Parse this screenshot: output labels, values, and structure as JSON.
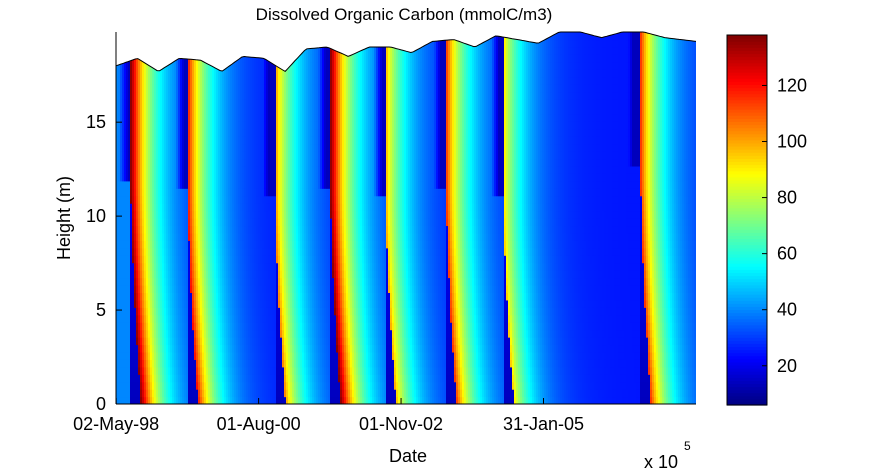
{
  "chart_data": {
    "type": "heatmap",
    "title": "Dissolved Organic Carbon (mmolC/m3)",
    "xlabel": "Date",
    "ylabel": "Height (m)",
    "x_axis": {
      "ticks": [
        {
          "date": "1998-05-02",
          "label": "02-May-98"
        },
        {
          "date": "2000-08-01",
          "label": "01-Aug-00"
        },
        {
          "date": "2002-11-01",
          "label": "01-Nov-02"
        },
        {
          "date": "2005-01-31",
          "label": "31-Jan-05"
        }
      ],
      "xlim": [
        "1998-05-01",
        "2007-06-30"
      ],
      "exponent_label": "x 10",
      "exponent_power": "5"
    },
    "y_axis": {
      "ticks": [
        0,
        5,
        10,
        15
      ],
      "ylim": [
        0,
        19.8
      ]
    },
    "colorbar": {
      "colormap": "jet",
      "range": [
        6,
        138
      ],
      "ticks": [
        20,
        40,
        60,
        80,
        100,
        120
      ]
    },
    "surface_height_m": [
      {
        "date": "1998-05-01",
        "height": 18.0
      },
      {
        "date": "1998-09-01",
        "height": 18.4
      },
      {
        "date": "1999-01-01",
        "height": 17.7
      },
      {
        "date": "1999-05-01",
        "height": 18.4
      },
      {
        "date": "1999-09-01",
        "height": 18.3
      },
      {
        "date": "2000-01-01",
        "height": 17.7
      },
      {
        "date": "2000-05-01",
        "height": 18.5
      },
      {
        "date": "2000-09-01",
        "height": 18.4
      },
      {
        "date": "2001-01-01",
        "height": 17.7
      },
      {
        "date": "2001-05-01",
        "height": 18.9
      },
      {
        "date": "2001-09-01",
        "height": 19.0
      },
      {
        "date": "2002-01-01",
        "height": 18.5
      },
      {
        "date": "2002-05-01",
        "height": 19.0
      },
      {
        "date": "2002-09-01",
        "height": 19.0
      },
      {
        "date": "2003-01-01",
        "height": 18.7
      },
      {
        "date": "2003-05-01",
        "height": 19.3
      },
      {
        "date": "2003-09-01",
        "height": 19.4
      },
      {
        "date": "2004-01-01",
        "height": 19.0
      },
      {
        "date": "2004-05-01",
        "height": 19.6
      },
      {
        "date": "2004-09-01",
        "height": 19.4
      },
      {
        "date": "2005-01-01",
        "height": 19.2
      },
      {
        "date": "2005-05-01",
        "height": 19.8
      },
      {
        "date": "2005-09-01",
        "height": 19.8
      },
      {
        "date": "2006-01-01",
        "height": 19.5
      },
      {
        "date": "2006-05-01",
        "height": 19.8
      },
      {
        "date": "2006-09-01",
        "height": 19.8
      },
      {
        "date": "2007-01-01",
        "height": 19.5
      },
      {
        "date": "2007-06-30",
        "height": 19.3
      }
    ],
    "bloom_events": [
      {
        "date": "1998-07-25",
        "peak": 137,
        "mix_depth_m": 12.0
      },
      {
        "date": "1999-06-20",
        "peak": 120,
        "mix_depth_m": 11.5
      },
      {
        "date": "2000-11-05",
        "peak": 105,
        "mix_depth_m": 11.2
      },
      {
        "date": "2001-09-20",
        "peak": 137,
        "mix_depth_m": 11.5
      },
      {
        "date": "2002-08-05",
        "peak": 100,
        "mix_depth_m": 11.0
      },
      {
        "date": "2003-07-20",
        "peak": 115,
        "mix_depth_m": 11.5
      },
      {
        "date": "2004-06-15",
        "peak": 95,
        "mix_depth_m": 11.0
      },
      {
        "date": "2006-08-15",
        "peak": 115,
        "mix_depth_m": 12.5
      }
    ]
  }
}
